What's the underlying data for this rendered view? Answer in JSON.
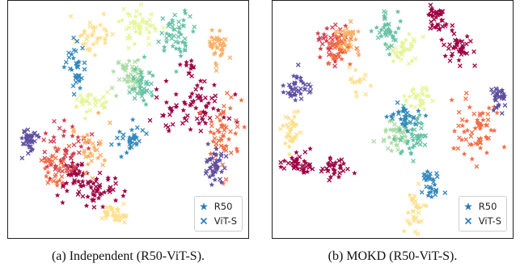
{
  "chart_data": [
    {
      "type": "scatter",
      "caption": "(a) Independent (R50-ViT-S).",
      "legend": [
        {
          "label": "R50",
          "marker": "star",
          "color": "#2b7bb9"
        },
        {
          "label": "ViT-S",
          "marker": "x",
          "color": "#2b7bb9"
        }
      ],
      "palette": [
        "#9e0142",
        "#d53e4f",
        "#f46d43",
        "#fdae61",
        "#fee08b",
        "#e6f598",
        "#abdda4",
        "#66c2a5",
        "#3288bd",
        "#5e4fa2"
      ],
      "clusters": [
        {
          "c": 0,
          "x": 0.37,
          "y": 0.8,
          "sx": 0.05,
          "sy": 0.035,
          "n": 45
        },
        {
          "c": 0,
          "x": 0.27,
          "y": 0.72,
          "sx": 0.035,
          "sy": 0.04,
          "n": 40
        },
        {
          "c": 0,
          "x": 0.76,
          "y": 0.44,
          "sx": 0.08,
          "sy": 0.06,
          "n": 70
        },
        {
          "c": 0,
          "x": 0.76,
          "y": 0.28,
          "sx": 0.02,
          "sy": 0.015,
          "n": 10
        },
        {
          "c": 1,
          "x": 0.23,
          "y": 0.63,
          "sx": 0.05,
          "sy": 0.055,
          "n": 50
        },
        {
          "c": 2,
          "x": 0.2,
          "y": 0.7,
          "sx": 0.03,
          "sy": 0.05,
          "n": 30
        },
        {
          "c": 2,
          "x": 0.9,
          "y": 0.56,
          "sx": 0.035,
          "sy": 0.07,
          "n": 55
        },
        {
          "c": 3,
          "x": 0.34,
          "y": 0.62,
          "sx": 0.035,
          "sy": 0.05,
          "n": 30
        },
        {
          "c": 3,
          "x": 0.87,
          "y": 0.2,
          "sx": 0.02,
          "sy": 0.035,
          "n": 35
        },
        {
          "c": 4,
          "x": 0.44,
          "y": 0.9,
          "sx": 0.035,
          "sy": 0.02,
          "n": 35
        },
        {
          "c": 4,
          "x": 0.35,
          "y": 0.16,
          "sx": 0.04,
          "sy": 0.04,
          "n": 35
        },
        {
          "c": 5,
          "x": 0.55,
          "y": 0.1,
          "sx": 0.035,
          "sy": 0.04,
          "n": 45
        },
        {
          "c": 5,
          "x": 0.35,
          "y": 0.43,
          "sx": 0.045,
          "sy": 0.025,
          "n": 30
        },
        {
          "c": 6,
          "x": 0.51,
          "y": 0.32,
          "sx": 0.035,
          "sy": 0.045,
          "n": 50
        },
        {
          "c": 7,
          "x": 0.7,
          "y": 0.14,
          "sx": 0.04,
          "sy": 0.05,
          "n": 50
        },
        {
          "c": 7,
          "x": 0.56,
          "y": 0.36,
          "sx": 0.025,
          "sy": 0.04,
          "n": 35
        },
        {
          "c": 8,
          "x": 0.28,
          "y": 0.28,
          "sx": 0.025,
          "sy": 0.05,
          "n": 35
        },
        {
          "c": 8,
          "x": 0.52,
          "y": 0.58,
          "sx": 0.03,
          "sy": 0.025,
          "n": 30
        },
        {
          "c": 9,
          "x": 0.09,
          "y": 0.59,
          "sx": 0.02,
          "sy": 0.025,
          "n": 40
        },
        {
          "c": 9,
          "x": 0.86,
          "y": 0.71,
          "sx": 0.02,
          "sy": 0.045,
          "n": 40
        }
      ]
    },
    {
      "type": "scatter",
      "caption": "(b) MOKD (R50-ViT-S).",
      "legend": [
        {
          "label": "R50",
          "marker": "star",
          "color": "#2b7bb9"
        },
        {
          "label": "ViT-S",
          "marker": "x",
          "color": "#2b7bb9"
        }
      ],
      "palette": [
        "#9e0142",
        "#d53e4f",
        "#f46d43",
        "#fdae61",
        "#fee08b",
        "#e6f598",
        "#abdda4",
        "#66c2a5",
        "#3288bd",
        "#5e4fa2"
      ],
      "clusters": [
        {
          "c": 0,
          "x": 0.68,
          "y": 0.07,
          "sx": 0.025,
          "sy": 0.03,
          "n": 35
        },
        {
          "c": 0,
          "x": 0.78,
          "y": 0.2,
          "sx": 0.03,
          "sy": 0.035,
          "n": 40
        },
        {
          "c": 0,
          "x": 0.12,
          "y": 0.69,
          "sx": 0.045,
          "sy": 0.02,
          "n": 40
        },
        {
          "c": 0,
          "x": 0.27,
          "y": 0.7,
          "sx": 0.03,
          "sy": 0.025,
          "n": 30
        },
        {
          "c": 1,
          "x": 0.25,
          "y": 0.17,
          "sx": 0.035,
          "sy": 0.045,
          "n": 40
        },
        {
          "c": 2,
          "x": 0.28,
          "y": 0.19,
          "sx": 0.03,
          "sy": 0.035,
          "n": 35
        },
        {
          "c": 2,
          "x": 0.84,
          "y": 0.55,
          "sx": 0.05,
          "sy": 0.06,
          "n": 60
        },
        {
          "c": 3,
          "x": 0.32,
          "y": 0.16,
          "sx": 0.03,
          "sy": 0.035,
          "n": 30
        },
        {
          "c": 4,
          "x": 0.08,
          "y": 0.54,
          "sx": 0.015,
          "sy": 0.04,
          "n": 35
        },
        {
          "c": 4,
          "x": 0.59,
          "y": 0.9,
          "sx": 0.02,
          "sy": 0.04,
          "n": 30
        },
        {
          "c": 4,
          "x": 0.36,
          "y": 0.33,
          "sx": 0.02,
          "sy": 0.04,
          "n": 15
        },
        {
          "c": 5,
          "x": 0.55,
          "y": 0.2,
          "sx": 0.03,
          "sy": 0.035,
          "n": 35
        },
        {
          "c": 5,
          "x": 0.62,
          "y": 0.41,
          "sx": 0.03,
          "sy": 0.025,
          "n": 30
        },
        {
          "c": 6,
          "x": 0.51,
          "y": 0.56,
          "sx": 0.03,
          "sy": 0.04,
          "n": 40
        },
        {
          "c": 7,
          "x": 0.48,
          "y": 0.13,
          "sx": 0.025,
          "sy": 0.04,
          "n": 40
        },
        {
          "c": 7,
          "x": 0.58,
          "y": 0.56,
          "sx": 0.03,
          "sy": 0.05,
          "n": 45
        },
        {
          "c": 8,
          "x": 0.55,
          "y": 0.49,
          "sx": 0.03,
          "sy": 0.03,
          "n": 30
        },
        {
          "c": 8,
          "x": 0.66,
          "y": 0.77,
          "sx": 0.02,
          "sy": 0.04,
          "n": 30
        },
        {
          "c": 9,
          "x": 0.09,
          "y": 0.38,
          "sx": 0.025,
          "sy": 0.03,
          "n": 40
        },
        {
          "c": 9,
          "x": 0.94,
          "y": 0.4,
          "sx": 0.015,
          "sy": 0.035,
          "n": 30
        }
      ]
    }
  ]
}
